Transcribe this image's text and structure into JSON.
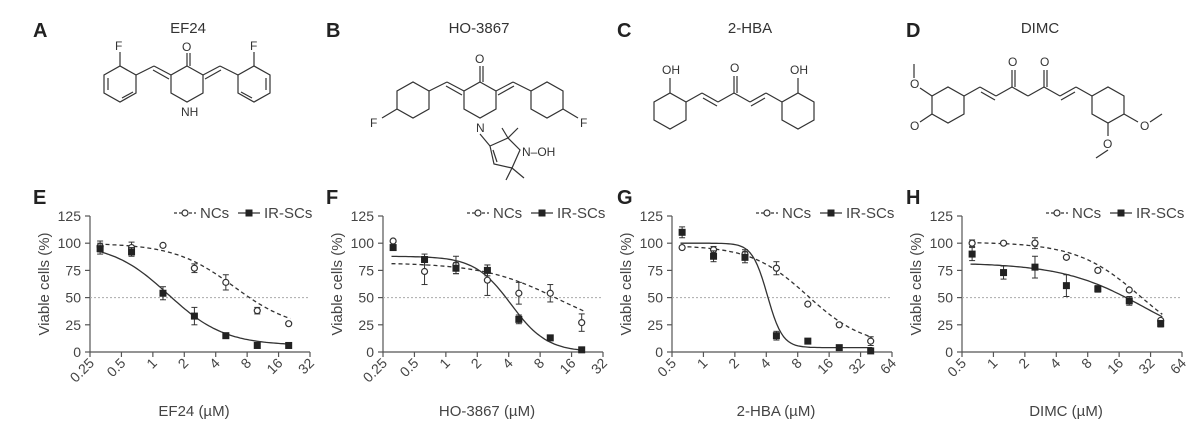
{
  "structures": [
    {
      "letter": "A",
      "name": "EF24",
      "labels": {
        "f1": "F",
        "f2": "F",
        "o": "O",
        "nh": "NH"
      }
    },
    {
      "letter": "B",
      "name": "HO-3867",
      "labels": {
        "o": "O",
        "f1": "F",
        "f2": "F",
        "n": "N",
        "noh": "N–OH"
      }
    },
    {
      "letter": "C",
      "name": "2-HBA",
      "labels": {
        "oh1": "OH",
        "o": "O",
        "oh2": "OH"
      }
    },
    {
      "letter": "D",
      "name": "DIMC",
      "labels": {
        "o1": "O",
        "o2": "O",
        "o3": "O",
        "o4": "O",
        "o5": "O",
        "o6": "O"
      }
    }
  ],
  "chart_data": [
    {
      "type": "line",
      "letter": "E",
      "xscale": "log2",
      "xlabel": "EF24 (µM)",
      "ylabel": "Viable cells (%)",
      "xlim": [
        0.25,
        32
      ],
      "ylim": [
        0,
        125
      ],
      "xticks": [
        0.25,
        0.5,
        1,
        2,
        4,
        8,
        16,
        32
      ],
      "xticklabels": [
        "0.25",
        "0.5",
        "1",
        "2",
        "4",
        "8",
        "16",
        "32"
      ],
      "yticks": [
        0,
        25,
        50,
        75,
        100,
        125
      ],
      "yticklabels": [
        "0",
        "25",
        "50",
        "75",
        "100",
        "125"
      ],
      "refline": 50,
      "legend": {
        "nc": "NCs",
        "sc": "IR-SCs"
      },
      "series": [
        {
          "name": "NCs",
          "marker": "circle-open",
          "line": "dashed",
          "x": [
            0.3125,
            0.625,
            1.25,
            2.5,
            5,
            10,
            20
          ],
          "y": [
            97,
            96,
            98,
            77,
            64,
            38,
            26
          ],
          "err": [
            5,
            5,
            0,
            4,
            7,
            3,
            0
          ],
          "fit": {
            "top": 100,
            "bottom": 20,
            "ec50": 6.0,
            "hill": 1.5
          }
        },
        {
          "name": "IR-SCs",
          "marker": "square-filled",
          "line": "solid",
          "x": [
            0.3125,
            0.625,
            1.25,
            2.5,
            5,
            10,
            20
          ],
          "y": [
            95,
            92,
            54,
            33,
            15,
            6,
            6
          ],
          "err": [
            5,
            4,
            6,
            8,
            2,
            0,
            0
          ],
          "fit": {
            "top": 100,
            "bottom": 6,
            "ec50": 1.4,
            "hill": 1.6
          }
        }
      ]
    },
    {
      "type": "line",
      "letter": "F",
      "xscale": "log2",
      "xlabel": "HO-3867 (µM)",
      "ylabel": "Viable cells (%)",
      "xlim": [
        0.25,
        32
      ],
      "ylim": [
        0,
        125
      ],
      "xticks": [
        0.25,
        0.5,
        1,
        2,
        4,
        8,
        16,
        32
      ],
      "xticklabels": [
        "0.25",
        "0.5",
        "1",
        "2",
        "4",
        "8",
        "16",
        "32"
      ],
      "yticks": [
        0,
        25,
        50,
        75,
        100,
        125
      ],
      "yticklabels": [
        "0",
        "25",
        "50",
        "75",
        "100",
        "125"
      ],
      "refline": 50,
      "legend": {
        "nc": "NCs",
        "sc": "IR-SCs"
      },
      "series": [
        {
          "name": "NCs",
          "marker": "circle-open",
          "line": "dashed",
          "x": [
            0.3125,
            0.625,
            1.25,
            2.5,
            5,
            10,
            20
          ],
          "y": [
            102,
            74,
            80,
            66,
            54,
            54,
            27
          ],
          "err": [
            0,
            12,
            8,
            14,
            10,
            8,
            8
          ],
          "fit": {
            "top": 82,
            "bottom": 15,
            "ec50": 12,
            "hill": 1.2
          }
        },
        {
          "name": "IR-SCs",
          "marker": "square-filled",
          "line": "solid",
          "x": [
            0.3125,
            0.625,
            1.25,
            2.5,
            5,
            10,
            20
          ],
          "y": [
            96,
            85,
            77,
            75,
            30,
            13,
            2
          ],
          "err": [
            0,
            5,
            5,
            5,
            4,
            0,
            0
          ],
          "fit": {
            "top": 88,
            "bottom": 0,
            "ec50": 4.2,
            "hill": 2.5
          }
        }
      ]
    },
    {
      "type": "line",
      "letter": "G",
      "xscale": "log2",
      "xlabel": "2-HBA (µM)",
      "ylabel": "Viable cells (%)",
      "xlim": [
        0.5,
        64
      ],
      "ylim": [
        0,
        125
      ],
      "xticks": [
        0.5,
        1,
        2,
        4,
        8,
        16,
        32,
        64
      ],
      "xticklabels": [
        "0.5",
        "1",
        "2",
        "4",
        "8",
        "16",
        "32",
        "64"
      ],
      "yticks": [
        0,
        25,
        50,
        75,
        100,
        125
      ],
      "yticklabels": [
        "0",
        "25",
        "50",
        "75",
        "100",
        "125"
      ],
      "refline": 50,
      "legend": {
        "nc": "NCs",
        "sc": "IR-SCs"
      },
      "series": [
        {
          "name": "NCs",
          "marker": "circle-open",
          "line": "dashed",
          "x": [
            0.625,
            1.25,
            2.5,
            5,
            10,
            20,
            40
          ],
          "y": [
            96,
            94,
            90,
            77,
            44,
            25,
            10
          ],
          "err": [
            0,
            3,
            4,
            6,
            0,
            0,
            4
          ],
          "fit": {
            "top": 98,
            "bottom": 5,
            "ec50": 10,
            "hill": 1.6
          }
        },
        {
          "name": "IR-SCs",
          "marker": "square-filled",
          "line": "solid",
          "x": [
            0.625,
            1.25,
            2.5,
            5,
            10,
            20,
            40
          ],
          "y": [
            110,
            88,
            87,
            15,
            10,
            4,
            1
          ],
          "err": [
            5,
            5,
            5,
            4,
            0,
            0,
            0
          ],
          "fit": {
            "top": 100,
            "bottom": 4,
            "ec50": 4.1,
            "hill": 6
          }
        }
      ]
    },
    {
      "type": "line",
      "letter": "H",
      "xscale": "log2",
      "xlabel": "DIMC (µM)",
      "ylabel": "Viable cells (%)",
      "xlim": [
        0.5,
        64
      ],
      "ylim": [
        0,
        125
      ],
      "xticks": [
        0.5,
        1,
        2,
        4,
        8,
        16,
        32,
        64
      ],
      "xticklabels": [
        "0.5",
        "1",
        "2",
        "4",
        "8",
        "16",
        "32",
        "64"
      ],
      "yticks": [
        0,
        25,
        50,
        75,
        100,
        125
      ],
      "yticklabels": [
        "0",
        "25",
        "50",
        "75",
        "100",
        "125"
      ],
      "refline": 50,
      "legend": {
        "nc": "NCs",
        "sc": "IR-SCs"
      },
      "series": [
        {
          "name": "NCs",
          "marker": "circle-open",
          "line": "dashed",
          "x": [
            0.625,
            1.25,
            2.5,
            5,
            10,
            20,
            40
          ],
          "y": [
            100,
            100,
            100,
            87,
            75,
            57,
            29
          ],
          "err": [
            3,
            0,
            5,
            0,
            0,
            0,
            0
          ],
          "fit": {
            "top": 101,
            "bottom": 0,
            "ec50": 26,
            "hill": 1.4
          }
        },
        {
          "name": "IR-SCs",
          "marker": "square-filled",
          "line": "solid",
          "x": [
            0.625,
            1.25,
            2.5,
            5,
            10,
            20,
            40
          ],
          "y": [
            90,
            73,
            78,
            61,
            58,
            47,
            26
          ],
          "err": [
            6,
            6,
            10,
            10,
            3,
            4,
            3
          ],
          "fit": {
            "top": 82,
            "bottom": 0,
            "ec50": 28,
            "hill": 1.1
          }
        }
      ]
    }
  ]
}
